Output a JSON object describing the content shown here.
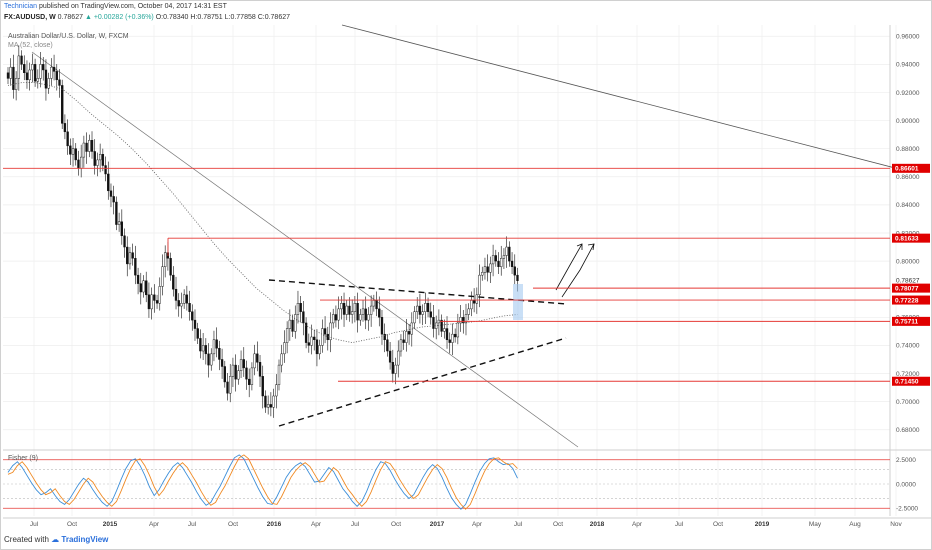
{
  "header": {
    "author": "Technician",
    "published_text": "published on TradingView.com, October 04, 2017 14:31 EST",
    "symbol": "FX:AUDUSD, W",
    "last": "0.78627",
    "change_arrow": "▲",
    "change": "+0.00282 (+0.36%)",
    "ohlc": "O:0.78340 H:0.78751 L:0.77858 C:0.78627"
  },
  "legend": {
    "instrument": "Australian Dollar/U.S. Dollar, W, FXCM",
    "ma_label": "MA (52, close)",
    "fisher_label": "Fisher (9)"
  },
  "footer": {
    "created_with": "Created with",
    "brand": "TradingView"
  },
  "colors": {
    "up": "#26a69a",
    "candle_body": "#ffffff",
    "candle_fill_down": "#111111",
    "level_line": "#e53935",
    "level_tag": "#e00000",
    "fisher_a": "#f08a24",
    "fisher_b": "#3d8fd9",
    "grid": "#eeeeee",
    "box": "#9dc4ef"
  },
  "chart_data": [
    {
      "type": "candlestick",
      "instrument": "AUDUSD",
      "timeframe": "W",
      "ylim": [
        0.667,
        0.968
      ],
      "y_ticks": [
        "0.96000",
        "0.94000",
        "0.92000",
        "0.90000",
        "0.88000",
        "0.86000",
        "0.84000",
        "0.82000",
        "0.80000",
        "0.78627",
        "0.76000",
        "0.74000",
        "0.72000",
        "0.70000",
        "0.68000"
      ],
      "x_ticks": [
        "Jul",
        "Oct",
        "2015",
        "Apr",
        "Jul",
        "Oct",
        "2016",
        "Apr",
        "Jul",
        "Oct",
        "2017",
        "Apr",
        "Jul",
        "Oct",
        "2018",
        "Apr",
        "Jul",
        "Oct",
        "2019",
        "May",
        "Aug",
        "Nov"
      ],
      "last_price": 0.78627,
      "levels": [
        {
          "label": "0.86601",
          "value": 0.86601
        },
        {
          "label": "0.81633",
          "value": 0.81633
        },
        {
          "label": "0.78077",
          "value": 0.78077
        },
        {
          "label": "0.77228",
          "value": 0.77228
        },
        {
          "label": "0.75711",
          "value": 0.75711
        },
        {
          "label": "0.71450",
          "value": 0.7145
        }
      ],
      "closes": [
        0.93,
        0.938,
        0.922,
        0.93,
        0.946,
        0.94,
        0.934,
        0.929,
        0.936,
        0.94,
        0.928,
        0.93,
        0.94,
        0.936,
        0.923,
        0.93,
        0.938,
        0.935,
        0.929,
        0.925,
        0.898,
        0.892,
        0.882,
        0.876,
        0.88,
        0.872,
        0.866,
        0.874,
        0.884,
        0.878,
        0.886,
        0.878,
        0.868,
        0.872,
        0.876,
        0.868,
        0.862,
        0.85,
        0.846,
        0.842,
        0.826,
        0.828,
        0.818,
        0.81,
        0.798,
        0.806,
        0.802,
        0.79,
        0.784,
        0.778,
        0.786,
        0.776,
        0.766,
        0.776,
        0.772,
        0.77,
        0.782,
        0.796,
        0.806,
        0.802,
        0.79,
        0.78,
        0.772,
        0.768,
        0.77,
        0.776,
        0.77,
        0.764,
        0.758,
        0.752,
        0.745,
        0.736,
        0.74,
        0.734,
        0.726,
        0.734,
        0.744,
        0.738,
        0.73,
        0.725,
        0.714,
        0.706,
        0.718,
        0.726,
        0.716,
        0.722,
        0.73,
        0.724,
        0.716,
        0.712,
        0.724,
        0.734,
        0.728,
        0.718,
        0.704,
        0.696,
        0.698,
        0.696,
        0.704,
        0.712,
        0.726,
        0.734,
        0.742,
        0.752,
        0.758,
        0.75,
        0.762,
        0.77,
        0.764,
        0.756,
        0.742,
        0.74,
        0.746,
        0.744,
        0.734,
        0.74,
        0.752,
        0.748,
        0.744,
        0.756,
        0.762,
        0.758,
        0.766,
        0.77,
        0.762,
        0.768,
        0.762,
        0.764,
        0.77,
        0.758,
        0.762,
        0.766,
        0.758,
        0.762,
        0.768,
        0.772,
        0.766,
        0.76,
        0.748,
        0.744,
        0.736,
        0.728,
        0.72,
        0.726,
        0.736,
        0.744,
        0.742,
        0.75,
        0.748,
        0.756,
        0.764,
        0.768,
        0.762,
        0.764,
        0.77,
        0.764,
        0.76,
        0.752,
        0.756,
        0.758,
        0.75,
        0.752,
        0.744,
        0.742,
        0.748,
        0.746,
        0.756,
        0.76,
        0.756,
        0.762,
        0.766,
        0.772,
        0.77,
        0.776,
        0.79,
        0.792,
        0.796,
        0.792,
        0.798,
        0.804,
        0.8,
        0.796,
        0.802,
        0.804,
        0.81,
        0.8,
        0.796,
        0.79,
        0.786
      ],
      "moving_average": {
        "name": "MA (52, close)",
        "values_sampled": [
          0.925,
          0.927,
          0.927,
          0.925,
          0.922,
          0.914,
          0.905,
          0.897,
          0.889,
          0.88,
          0.87,
          0.859,
          0.848,
          0.836,
          0.824,
          0.812,
          0.801,
          0.791,
          0.781,
          0.773,
          0.765,
          0.758,
          0.752,
          0.747,
          0.744,
          0.742,
          0.744,
          0.746,
          0.749,
          0.751,
          0.753,
          0.754,
          0.755,
          0.756,
          0.757,
          0.759,
          0.761,
          0.762
        ]
      },
      "annotations": [
        {
          "type": "trendline",
          "label": "descending resistance"
        },
        {
          "type": "trendline",
          "label": "long-term downtrend"
        },
        {
          "type": "dashed-trendline",
          "label": "triangle upper"
        },
        {
          "type": "dashed-trendline",
          "label": "triangle lower"
        },
        {
          "type": "arrow",
          "label": "projected up move"
        }
      ]
    },
    {
      "type": "line",
      "name": "Fisher (9)",
      "ylim": [
        -3.3,
        3.3
      ],
      "y_ticks": [
        "2.5000",
        "0.0000",
        "-2.5000"
      ],
      "levels": [
        2.5,
        -2.5
      ],
      "series": [
        {
          "name": "Fisher",
          "values": [
            1.2,
            1.9,
            2.3,
            1.7,
            0.9,
            0.1,
            -0.6,
            -1.1,
            -0.9,
            -0.5,
            -1.2,
            -1.8,
            -2.1,
            -1.6,
            -0.8,
            0.0,
            0.6,
            0.2,
            -0.6,
            -1.3,
            -1.9,
            -2.3,
            -1.8,
            -0.7,
            0.5,
            1.6,
            2.4,
            2.6,
            1.9,
            0.9,
            -0.3,
            -1.2,
            -0.6,
            0.3,
            1.1,
            1.8,
            2.2,
            1.7,
            0.9,
            0.1,
            -0.8,
            -1.6,
            -2.2,
            -1.9,
            -1.0,
            -0.2,
            0.8,
            1.8,
            2.7,
            3.0,
            2.6,
            1.6,
            0.6,
            -0.4,
            -1.3,
            -2.0,
            -2.1,
            -1.3,
            -0.3,
            0.7,
            1.4,
            1.9,
            2.2,
            1.8,
            1.0,
            0.2,
            0.3,
            1.0,
            1.7,
            1.3,
            0.4,
            -0.5,
            -1.1,
            -1.8,
            -2.3,
            -1.8,
            -0.8,
            0.4,
            1.5,
            2.3,
            2.1,
            1.4,
            0.5,
            -0.3,
            -1.0,
            -1.5,
            -1.1,
            -0.2,
            0.7,
            1.5,
            2.0,
            1.6,
            0.7,
            -0.4,
            -1.4,
            -2.1,
            -2.6,
            -2.1,
            -1.0,
            0.2,
            1.3,
            2.1,
            2.6,
            2.7,
            2.3,
            2.0,
            2.1,
            1.6,
            0.6
          ]
        },
        {
          "name": "Trigger",
          "values": [
            1.0,
            1.2,
            1.9,
            2.3,
            1.7,
            0.9,
            0.1,
            -0.6,
            -1.1,
            -0.9,
            -0.5,
            -1.2,
            -1.8,
            -2.1,
            -1.6,
            -0.8,
            0.0,
            0.6,
            0.2,
            -0.6,
            -1.3,
            -1.9,
            -2.3,
            -1.8,
            -0.7,
            0.5,
            1.6,
            2.4,
            2.6,
            1.9,
            0.9,
            -0.3,
            -1.2,
            -0.6,
            0.3,
            1.1,
            1.8,
            2.2,
            1.7,
            0.9,
            0.1,
            -0.8,
            -1.6,
            -2.2,
            -1.9,
            -1.0,
            -0.2,
            0.8,
            1.8,
            2.7,
            3.0,
            2.6,
            1.6,
            0.6,
            -0.4,
            -1.3,
            -2.0,
            -2.1,
            -1.3,
            -0.3,
            0.7,
            1.4,
            1.9,
            2.2,
            1.8,
            1.0,
            0.2,
            0.3,
            1.0,
            1.7,
            1.3,
            0.4,
            -0.5,
            -1.1,
            -1.8,
            -2.3,
            -1.8,
            -0.8,
            0.4,
            1.5,
            2.3,
            2.1,
            1.4,
            0.5,
            -0.3,
            -1.0,
            -1.5,
            -1.1,
            -0.2,
            0.7,
            1.5,
            2.0,
            1.6,
            0.7,
            -0.4,
            -1.4,
            -2.1,
            -2.6,
            -2.1,
            -1.0,
            0.2,
            1.3,
            2.1,
            2.6,
            2.7,
            2.3,
            2.0,
            2.1,
            1.6
          ]
        }
      ]
    }
  ]
}
